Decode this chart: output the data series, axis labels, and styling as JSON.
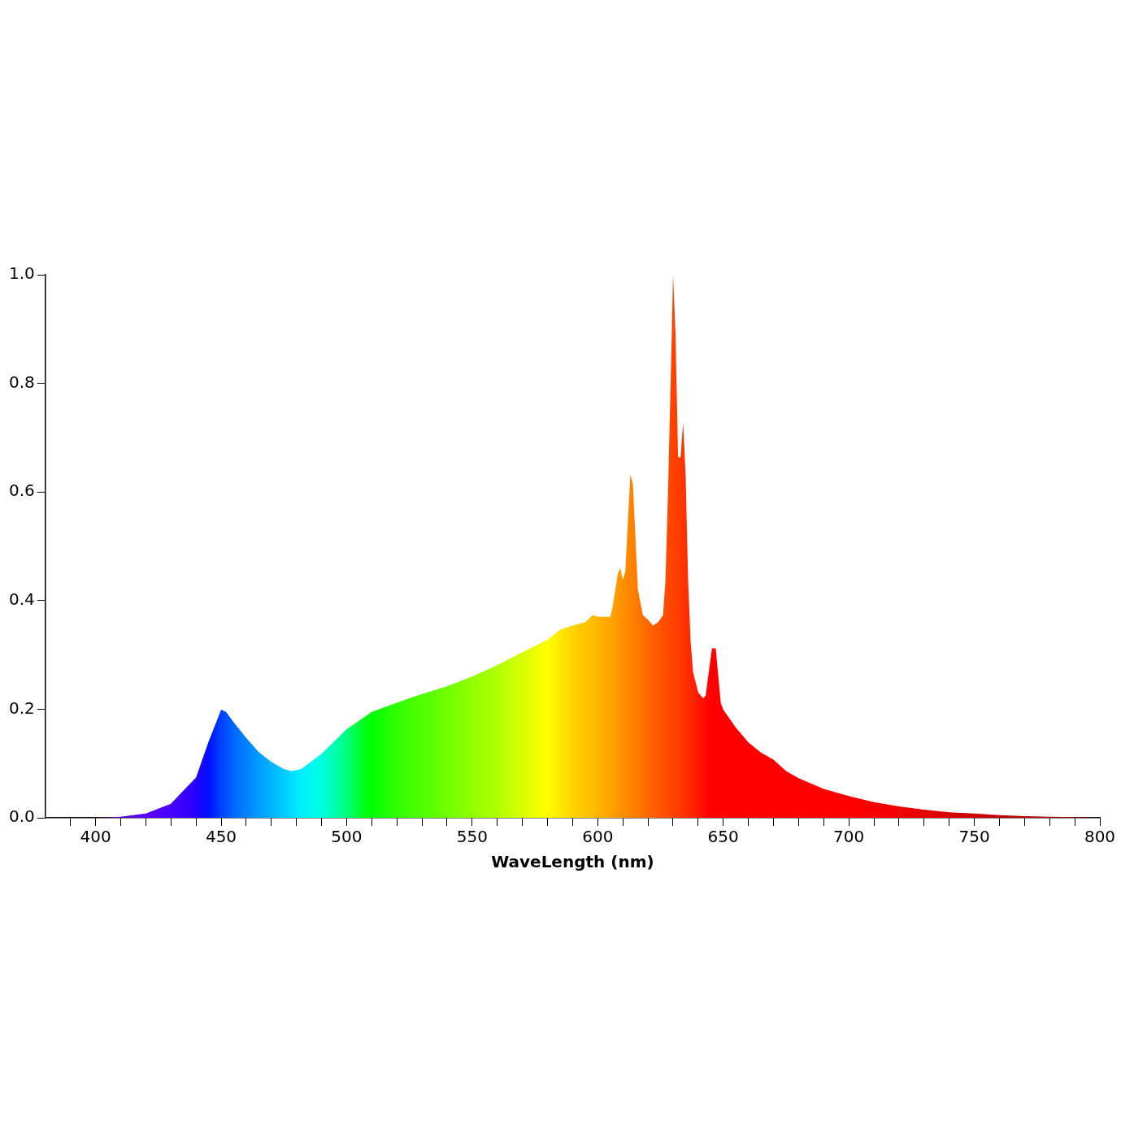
{
  "chart_data": {
    "type": "area",
    "xlabel": "WaveLength (nm)",
    "xlim": [
      380,
      800
    ],
    "ylim": [
      0,
      1
    ],
    "xticks": [
      {
        "value": 390,
        "label": null
      },
      400,
      {
        "value": 410,
        "label": null
      },
      {
        "value": 420,
        "label": null
      },
      {
        "value": 430,
        "label": null
      },
      {
        "value": 440,
        "label": null
      },
      450,
      {
        "value": 460,
        "label": null
      },
      {
        "value": 470,
        "label": null
      },
      {
        "value": 480,
        "label": null
      },
      {
        "value": 490,
        "label": null
      },
      500,
      {
        "value": 510,
        "label": null
      },
      {
        "value": 520,
        "label": null
      },
      {
        "value": 530,
        "label": null
      },
      {
        "value": 540,
        "label": null
      },
      550,
      {
        "value": 560,
        "label": null
      },
      {
        "value": 570,
        "label": null
      },
      {
        "value": 580,
        "label": null
      },
      {
        "value": 590,
        "label": null
      },
      600,
      {
        "value": 610,
        "label": null
      },
      {
        "value": 620,
        "label": null
      },
      {
        "value": 630,
        "label": null
      },
      {
        "value": 640,
        "label": null
      },
      650,
      {
        "value": 660,
        "label": null
      },
      {
        "value": 670,
        "label": null
      },
      {
        "value": 680,
        "label": null
      },
      {
        "value": 690,
        "label": null
      },
      700,
      {
        "value": 710,
        "label": null
      },
      {
        "value": 720,
        "label": null
      },
      {
        "value": 730,
        "label": null
      },
      {
        "value": 740,
        "label": null
      },
      750,
      {
        "value": 760,
        "label": null
      },
      {
        "value": 770,
        "label": null
      },
      {
        "value": 780,
        "label": null
      },
      {
        "value": 790,
        "label": null
      },
      800
    ],
    "yticks": [
      {
        "value": 0,
        "label": "0.0"
      },
      0.2,
      0.4,
      0.6,
      0.8,
      {
        "value": 1,
        "label": "1.0"
      }
    ],
    "grid": false,
    "legend": false,
    "marker": "none",
    "x": [
      380,
      400,
      410,
      420,
      430,
      435,
      440,
      445,
      450,
      452,
      455,
      460,
      465,
      470,
      475,
      478,
      482,
      490,
      500,
      505,
      510,
      520,
      530,
      540,
      550,
      560,
      570,
      580,
      585,
      590,
      595,
      598,
      600,
      605,
      606,
      608,
      609,
      610,
      611,
      613,
      614,
      616,
      618,
      620,
      622,
      624,
      626,
      627,
      628,
      629.5,
      630,
      631,
      632,
      633,
      634,
      635,
      636,
      637,
      638,
      640,
      642,
      643,
      644,
      645.5,
      647,
      649,
      650,
      655,
      660,
      665,
      670,
      675,
      680,
      690,
      700,
      710,
      720,
      730,
      740,
      750,
      760,
      770,
      780,
      790,
      800
    ],
    "values": [
      0,
      0,
      0.002,
      0.008,
      0.026,
      0.05,
      0.074,
      0.14,
      0.199,
      0.195,
      0.176,
      0.147,
      0.121,
      0.103,
      0.09,
      0.086,
      0.09,
      0.118,
      0.163,
      0.179,
      0.195,
      0.212,
      0.228,
      0.242,
      0.26,
      0.281,
      0.305,
      0.328,
      0.346,
      0.354,
      0.36,
      0.373,
      0.37,
      0.37,
      0.39,
      0.45,
      0.46,
      0.438,
      0.454,
      0.632,
      0.615,
      0.42,
      0.373,
      0.365,
      0.354,
      0.36,
      0.373,
      0.438,
      0.6,
      0.89,
      1.0,
      0.89,
      0.664,
      0.664,
      0.728,
      0.632,
      0.438,
      0.325,
      0.268,
      0.231,
      0.22,
      0.225,
      0.26,
      0.312,
      0.312,
      0.212,
      0.199,
      0.166,
      0.139,
      0.12,
      0.107,
      0.086,
      0.073,
      0.053,
      0.04,
      0.029,
      0.021,
      0.015,
      0.01,
      0.008,
      0.005,
      0.003,
      0.002,
      0.001,
      0
    ],
    "colors": [
      "#200040",
      "#40007f",
      "#5000c0",
      "#5a00ff",
      "#4800ff",
      "#3a00ff",
      "#2800ff",
      "#0010ff",
      "#0040ff",
      "#0050ff",
      "#0068ff",
      "#0080ff",
      "#009cff",
      "#00b4ff",
      "#00ccff",
      "#00dcff",
      "#00eeff",
      "#00ffe0",
      "#00ff80",
      "#00ff30",
      "#00ff00",
      "#30ff00",
      "#50ff00",
      "#70ff00",
      "#90ff00",
      "#b0ff00",
      "#d8ff00",
      "#ffff00",
      "#ffe800",
      "#ffd400",
      "#ffc400",
      "#ffbc00",
      "#ffb400",
      "#ffa400",
      "#ffa000",
      "#ff9800",
      "#ff9400",
      "#ff9000",
      "#ff8c00",
      "#ff8400",
      "#ff8000",
      "#ff7800",
      "#ff7000",
      "#ff6800",
      "#ff6000",
      "#ff5800",
      "#ff5000",
      "#ff4c00",
      "#ff4800",
      "#ff4400",
      "#ff4200",
      "#ff4000",
      "#ff3c00",
      "#ff3800",
      "#ff3400",
      "#ff3000",
      "#ff2c00",
      "#ff2800",
      "#ff2400",
      "#ff1800",
      "#ff1000",
      "#ff0800",
      "#ff0400",
      "#ff0000",
      "#ff0000",
      "#ff0000",
      "#ff0000",
      "#ff0000",
      "#ff0000",
      "#ff0000",
      "#ff0000",
      "#ff0000",
      "#ff0000",
      "#ff0000",
      "#ff0000",
      "#f80000",
      "#f00000",
      "#e40000",
      "#d80000",
      "#cc0000",
      "#c00000",
      "#b40000",
      "#a80000",
      "#a00000",
      "#980000"
    ]
  }
}
